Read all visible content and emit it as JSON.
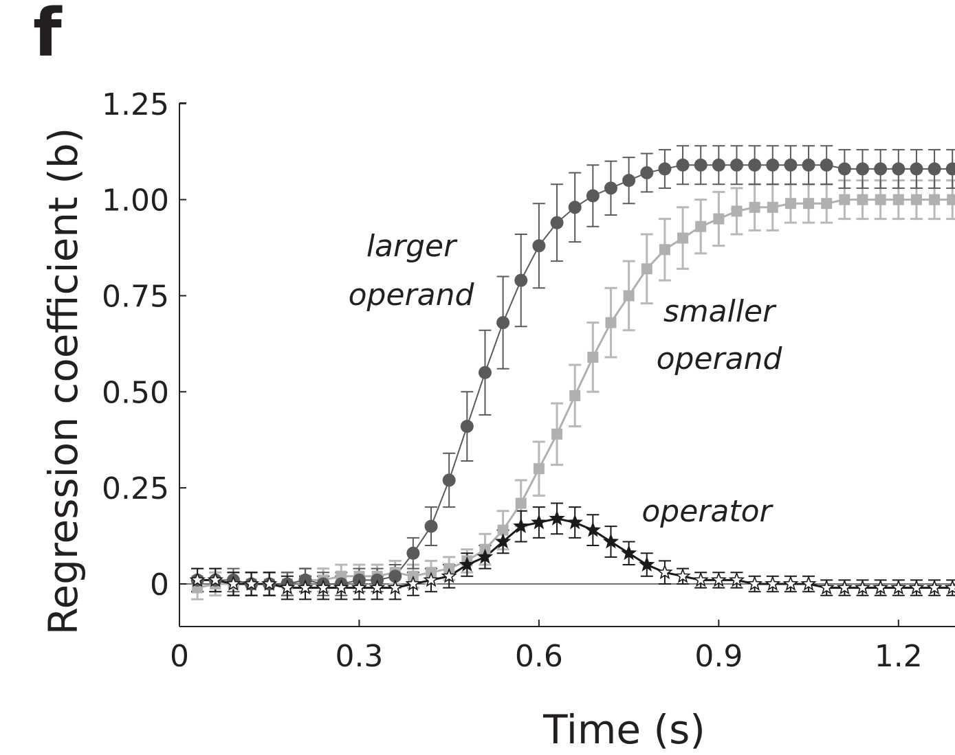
{
  "panel_label": "f",
  "chart_data": {
    "type": "line",
    "title": "",
    "xlabel": "Time (s)",
    "ylabel": "Regression coefficient (b)",
    "xlim": [
      0,
      1.29
    ],
    "ylim": [
      -0.11,
      1.25
    ],
    "xticks": [
      0,
      0.3,
      0.6,
      0.9,
      1.2
    ],
    "xtick_labels": [
      "0",
      "0.3",
      "0.6",
      "0.9",
      "1.2"
    ],
    "yticks": [
      0,
      0.25,
      0.5,
      0.75,
      1.0,
      1.25
    ],
    "ytick_labels": [
      "0",
      "0.25",
      "0.50",
      "0.75",
      "1.00",
      "1.25"
    ],
    "zero_line": true,
    "grid": false,
    "legend": "none",
    "x": [
      0.03,
      0.06,
      0.09,
      0.12,
      0.15,
      0.18,
      0.21,
      0.24,
      0.27,
      0.3,
      0.33,
      0.36,
      0.39,
      0.42,
      0.45,
      0.48,
      0.51,
      0.54,
      0.57,
      0.6,
      0.63,
      0.66,
      0.69,
      0.72,
      0.75,
      0.78,
      0.81,
      0.84,
      0.87,
      0.9,
      0.93,
      0.96,
      0.99,
      1.02,
      1.05,
      1.08,
      1.11,
      1.14,
      1.17,
      1.2,
      1.23,
      1.26,
      1.29
    ],
    "series": [
      {
        "name": "larger operand",
        "color": "#5a5a5a",
        "marker": "circle",
        "values": [
          0.01,
          0.01,
          0.01,
          0.0,
          0.0,
          0.0,
          0.01,
          0.0,
          0.0,
          0.01,
          0.01,
          0.02,
          0.08,
          0.15,
          0.27,
          0.41,
          0.55,
          0.68,
          0.79,
          0.88,
          0.94,
          0.98,
          1.01,
          1.03,
          1.05,
          1.07,
          1.08,
          1.09,
          1.09,
          1.09,
          1.09,
          1.09,
          1.09,
          1.09,
          1.09,
          1.09,
          1.08,
          1.08,
          1.08,
          1.08,
          1.08,
          1.08,
          1.08
        ],
        "errors": [
          0.03,
          0.03,
          0.03,
          0.03,
          0.03,
          0.03,
          0.03,
          0.03,
          0.03,
          0.03,
          0.03,
          0.03,
          0.04,
          0.05,
          0.07,
          0.09,
          0.11,
          0.12,
          0.12,
          0.11,
          0.1,
          0.09,
          0.08,
          0.07,
          0.06,
          0.05,
          0.05,
          0.05,
          0.05,
          0.05,
          0.05,
          0.05,
          0.05,
          0.05,
          0.05,
          0.05,
          0.05,
          0.05,
          0.05,
          0.05,
          0.05,
          0.05,
          0.05
        ]
      },
      {
        "name": "smaller operand",
        "color": "#b0b0b0",
        "marker": "square",
        "values": [
          -0.01,
          0.0,
          0.0,
          0.0,
          0.0,
          0.0,
          0.01,
          0.01,
          0.02,
          0.02,
          0.02,
          0.03,
          0.02,
          0.03,
          0.04,
          0.06,
          0.09,
          0.14,
          0.21,
          0.3,
          0.39,
          0.49,
          0.59,
          0.68,
          0.75,
          0.82,
          0.87,
          0.9,
          0.93,
          0.95,
          0.97,
          0.98,
          0.98,
          0.99,
          0.99,
          0.99,
          1.0,
          1.0,
          1.0,
          1.0,
          1.0,
          1.0,
          1.0
        ],
        "errors": [
          0.03,
          0.03,
          0.03,
          0.03,
          0.03,
          0.03,
          0.03,
          0.03,
          0.03,
          0.03,
          0.03,
          0.03,
          0.03,
          0.03,
          0.03,
          0.03,
          0.04,
          0.05,
          0.06,
          0.07,
          0.08,
          0.08,
          0.09,
          0.09,
          0.09,
          0.09,
          0.08,
          0.08,
          0.07,
          0.07,
          0.06,
          0.06,
          0.06,
          0.05,
          0.05,
          0.05,
          0.05,
          0.05,
          0.05,
          0.05,
          0.05,
          0.05,
          0.05
        ]
      },
      {
        "name": "operator",
        "color": "#1a1a1a",
        "marker": "star",
        "values": [
          0.01,
          0.01,
          0.0,
          0.0,
          0.0,
          -0.01,
          -0.01,
          -0.01,
          -0.01,
          -0.01,
          -0.01,
          -0.01,
          0.0,
          0.01,
          0.02,
          0.05,
          0.07,
          0.11,
          0.15,
          0.16,
          0.17,
          0.16,
          0.14,
          0.11,
          0.08,
          0.05,
          0.03,
          0.02,
          0.01,
          0.01,
          0.01,
          0.0,
          0.0,
          0.0,
          0.0,
          -0.01,
          -0.01,
          -0.01,
          -0.01,
          -0.01,
          -0.01,
          -0.01,
          -0.01
        ],
        "errors": [
          0.03,
          0.03,
          0.03,
          0.03,
          0.03,
          0.03,
          0.03,
          0.03,
          0.03,
          0.03,
          0.03,
          0.03,
          0.03,
          0.03,
          0.03,
          0.03,
          0.03,
          0.03,
          0.04,
          0.04,
          0.04,
          0.04,
          0.04,
          0.04,
          0.03,
          0.03,
          0.03,
          0.02,
          0.02,
          0.02,
          0.02,
          0.02,
          0.02,
          0.02,
          0.02,
          0.02,
          0.02,
          0.02,
          0.02,
          0.02,
          0.02,
          0.02,
          0.02
        ]
      }
    ],
    "annotations": [
      {
        "series": "larger operand",
        "lines": [
          "larger",
          "operand"
        ]
      },
      {
        "series": "smaller operand",
        "lines": [
          "smaller",
          "operand"
        ]
      },
      {
        "series": "operator",
        "lines": [
          "operator"
        ]
      }
    ]
  }
}
